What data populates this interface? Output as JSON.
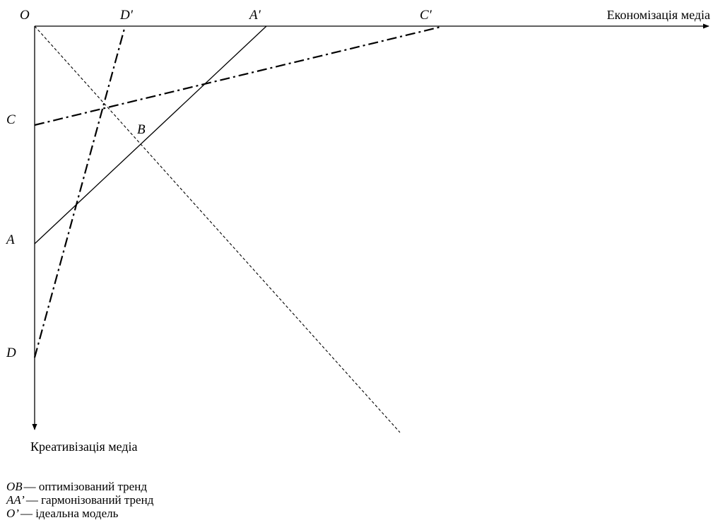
{
  "axes": {
    "horizontal": "Економізація медіа",
    "vertical": "Креативізація медіа"
  },
  "points": {
    "O": "O",
    "D_prime": "D′",
    "A_prime": "A′",
    "C_prime": "C′",
    "C": "C",
    "B": "B",
    "A": "A",
    "D": "D"
  },
  "legend": [
    {
      "symbol": "OB",
      "text": "— оптимізований тренд"
    },
    {
      "symbol": "AA’",
      "text": "— гармонізований тренд"
    },
    {
      "symbol": "O’",
      "text": "— ідеальна модель"
    }
  ]
}
